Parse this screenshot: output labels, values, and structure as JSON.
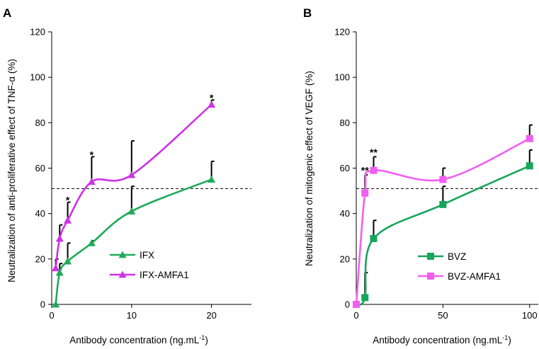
{
  "chart_data": [
    {
      "panel": "A",
      "type": "line",
      "xlabel": "Antibody concentration (ng.mL",
      "xlabel_sup": "-1",
      "xlabel_suffix": ")",
      "ylabel": "Neutralization of anti-proliferative effect of TNF-α  (%)",
      "xlim": [
        0,
        25
      ],
      "ylim": [
        0,
        120
      ],
      "xticks": [
        0,
        10,
        20
      ],
      "yticks": [
        0,
        20,
        40,
        60,
        80,
        100,
        120
      ],
      "reference_line_y": 51,
      "legend_position": "lower-center",
      "series": [
        {
          "name": "IFX",
          "color": "#1faa5a",
          "marker": "triangle",
          "x": [
            0.5,
            1,
            2,
            5,
            10,
            20
          ],
          "y": [
            0,
            14,
            19,
            27,
            41,
            55
          ],
          "error_upper": [
            0,
            18,
            27,
            28,
            52,
            63
          ]
        },
        {
          "name": "IFX-AMFA1",
          "color": "#cc33e6",
          "marker": "triangle",
          "x": [
            0.5,
            1,
            2,
            5,
            10,
            20
          ],
          "y": [
            16,
            29,
            37,
            54,
            57,
            88
          ],
          "error_upper": [
            20,
            35,
            45,
            65,
            72,
            90
          ]
        }
      ],
      "annotations": [
        {
          "text": "*",
          "x": 2,
          "y": 46
        },
        {
          "text": "*",
          "x": 5,
          "y": 66
        },
        {
          "text": "*",
          "x": 20,
          "y": 91
        }
      ]
    },
    {
      "panel": "B",
      "type": "line",
      "xlabel": "Antibody concentration (ng.mL",
      "xlabel_sup": "-1",
      "xlabel_suffix": ")",
      "ylabel": "Neutralization of  mitogenic effect of VEGF (%)",
      "xlim": [
        0,
        100
      ],
      "ylim": [
        0,
        120
      ],
      "xticks": [
        0,
        50,
        100
      ],
      "yticks": [
        0,
        20,
        40,
        60,
        80,
        100,
        120
      ],
      "reference_line_y": 51,
      "legend_position": "lower-right",
      "series": [
        {
          "name": "BVZ",
          "color": "#17a55c",
          "marker": "square",
          "x": [
            0,
            5,
            10,
            50,
            100
          ],
          "y": [
            0,
            3,
            29,
            44,
            61
          ],
          "error_upper": [
            0,
            14,
            37,
            52,
            68
          ]
        },
        {
          "name": "BVZ-AMFA1",
          "color": "#f25ef2",
          "marker": "square",
          "x": [
            0,
            5,
            10,
            50,
            100
          ],
          "y": [
            0,
            49,
            59,
            55,
            73
          ],
          "error_upper": [
            0,
            57,
            65,
            60,
            79
          ]
        }
      ],
      "annotations": [
        {
          "text": "**",
          "x": 5,
          "y": 59
        },
        {
          "text": "**",
          "x": 10,
          "y": 67
        }
      ]
    }
  ]
}
